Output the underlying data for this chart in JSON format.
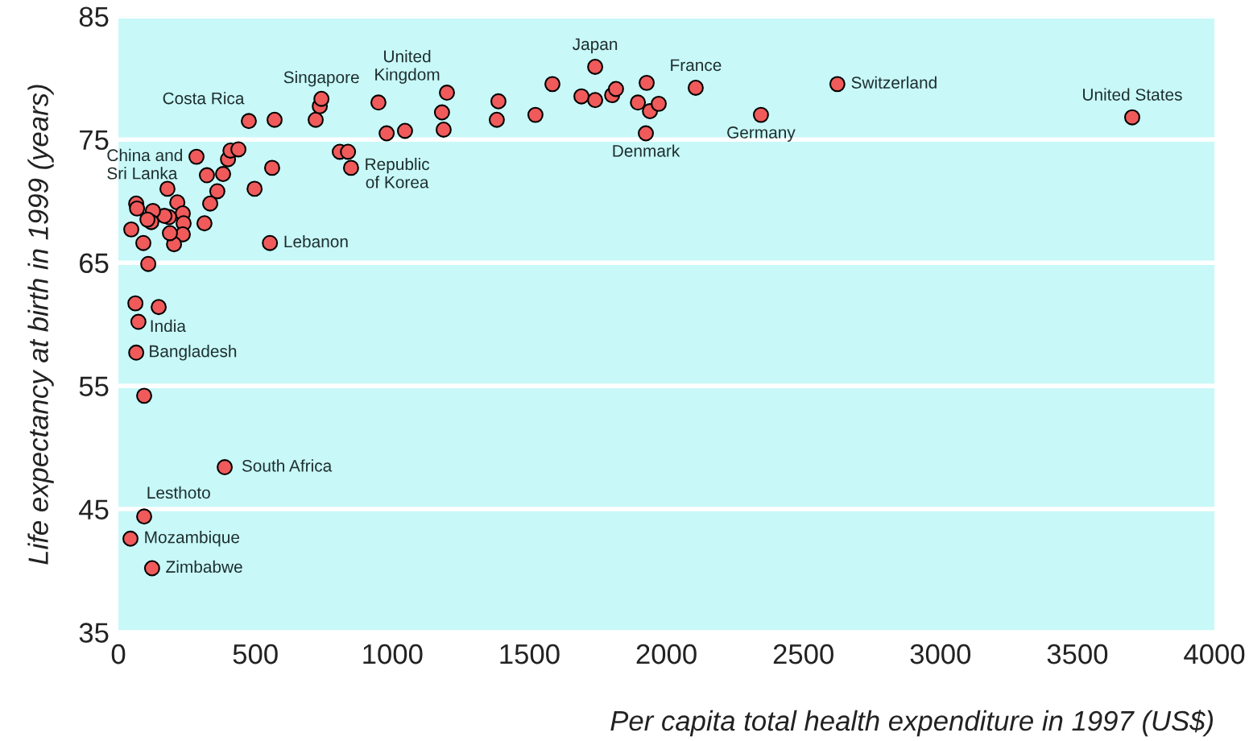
{
  "chart_data": {
    "type": "scatter",
    "xlabel": "Per capita total health expenditure in 1997 (US$)",
    "ylabel": "Life expectancy at birth in 1999 (years)",
    "xlim": [
      0,
      4000
    ],
    "ylim": [
      35,
      85
    ],
    "xticks": [
      0,
      500,
      1000,
      1500,
      2000,
      2500,
      3000,
      3500,
      4000
    ],
    "yticks": [
      35,
      45,
      55,
      65,
      75,
      85
    ],
    "grid": "y",
    "marker": "circle",
    "series": [
      {
        "color": "#f05a5a",
        "x": [
          285,
          323,
          382,
          400,
          409,
          438,
          561,
          497,
          361,
          335,
          314,
          553,
          179,
          215,
          235,
          238,
          235,
          203,
          188,
          185,
          168,
          126,
          120,
          106,
          65,
          68,
          47,
          91,
          109,
          62,
          147,
          73,
          65,
          94,
          388,
          94,
          44,
          123,
          476,
          570,
          720,
          735,
          741,
          949,
          979,
          1046,
          1199,
          1181,
          1187,
          808,
          838,
          849,
          1387,
          1381,
          1522,
          1584,
          1740,
          1690,
          1740,
          1802,
          1816,
          1928,
          1896,
          1940,
          1972,
          1925,
          2107,
          2345,
          2624,
          3700
        ],
        "values": [
          73.6,
          72.1,
          72.2,
          73.4,
          74.1,
          74.2,
          72.7,
          71.0,
          70.8,
          69.8,
          68.2,
          66.6,
          71.0,
          69.9,
          69.0,
          68.2,
          67.3,
          66.5,
          67.4,
          68.7,
          68.8,
          69.2,
          68.3,
          68.5,
          69.8,
          69.4,
          67.7,
          66.6,
          64.9,
          61.7,
          61.4,
          60.2,
          57.7,
          54.2,
          48.4,
          44.4,
          42.6,
          40.2,
          76.5,
          76.6,
          76.6,
          77.7,
          78.3,
          78.0,
          75.5,
          75.7,
          78.8,
          77.2,
          75.8,
          74.0,
          74.0,
          72.7,
          78.1,
          76.6,
          77.0,
          79.5,
          80.9,
          78.5,
          78.2,
          78.6,
          79.1,
          79.6,
          78.0,
          77.3,
          77.9,
          75.5,
          79.2,
          77.0,
          79.5,
          76.8
        ]
      }
    ],
    "annotations": [
      {
        "text": "China and\nSri Lanka",
        "x": 285,
        "y": 73.6
      },
      {
        "text": "Costa Rica",
        "x": 476,
        "y": 76.5
      },
      {
        "text": "Singapore",
        "x": 741,
        "y": 78.3
      },
      {
        "text": "United\nKingdom",
        "x": 1199,
        "y": 78.8
      },
      {
        "text": "Japan",
        "x": 1740,
        "y": 80.9
      },
      {
        "text": "France",
        "x": 2107,
        "y": 79.2
      },
      {
        "text": "Switzerland",
        "x": 2624,
        "y": 79.5
      },
      {
        "text": "United States",
        "x": 3700,
        "y": 76.8
      },
      {
        "text": "Germany",
        "x": 2345,
        "y": 77.0
      },
      {
        "text": "Denmark",
        "x": 1925,
        "y": 75.5
      },
      {
        "text": "Republic\nof Korea",
        "x": 849,
        "y": 72.7
      },
      {
        "text": "Lebanon",
        "x": 553,
        "y": 66.6
      },
      {
        "text": "India",
        "x": 73,
        "y": 60.2
      },
      {
        "text": "Bangladesh",
        "x": 65,
        "y": 57.7
      },
      {
        "text": "South Africa",
        "x": 388,
        "y": 48.4
      },
      {
        "text": "Lesthoto",
        "x": 94,
        "y": 44.4
      },
      {
        "text": "Mozambique",
        "x": 44,
        "y": 42.6
      },
      {
        "text": "Zimbabwe",
        "x": 123,
        "y": 40.2
      }
    ]
  }
}
